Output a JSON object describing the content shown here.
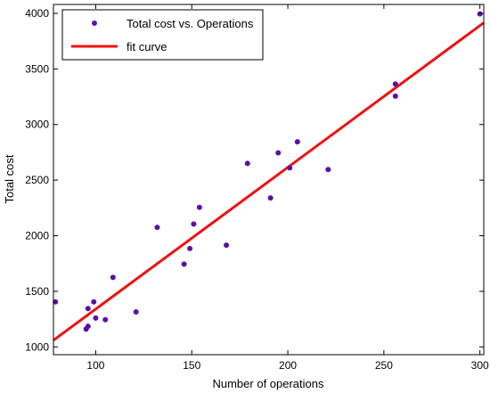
{
  "chart_data": {
    "type": "scatter",
    "xlabel": "Number of operations",
    "ylabel": "Total cost",
    "xlim": [
      78,
      302
    ],
    "ylim": [
      930,
      4080
    ],
    "xticks": [
      100,
      150,
      200,
      250,
      300
    ],
    "yticks": [
      1000,
      1500,
      2000,
      2500,
      3000,
      3500,
      4000
    ],
    "grid": false,
    "legend_position": "top-left",
    "series": [
      {
        "name": "Total cost vs. Operations",
        "kind": "points",
        "color": "#5a10a8",
        "points": [
          [
            79,
            1405
          ],
          [
            95,
            1160
          ],
          [
            96,
            1185
          ],
          [
            96,
            1345
          ],
          [
            99,
            1405
          ],
          [
            100,
            1260
          ],
          [
            105,
            1245
          ],
          [
            109,
            1625
          ],
          [
            121,
            1315
          ],
          [
            132,
            2075
          ],
          [
            146,
            1745
          ],
          [
            149,
            1885
          ],
          [
            151,
            2105
          ],
          [
            154,
            2255
          ],
          [
            168,
            1915
          ],
          [
            179,
            2650
          ],
          [
            191,
            2340
          ],
          [
            195,
            2745
          ],
          [
            201,
            2610
          ],
          [
            205,
            2845
          ],
          [
            221,
            2595
          ],
          [
            256,
            3365
          ],
          [
            256,
            3255
          ],
          [
            300,
            3995
          ]
        ]
      },
      {
        "name": "fit curve",
        "kind": "line",
        "color": "#ee1111",
        "points": [
          [
            78,
            1060
          ],
          [
            302,
            3915
          ]
        ]
      }
    ]
  }
}
